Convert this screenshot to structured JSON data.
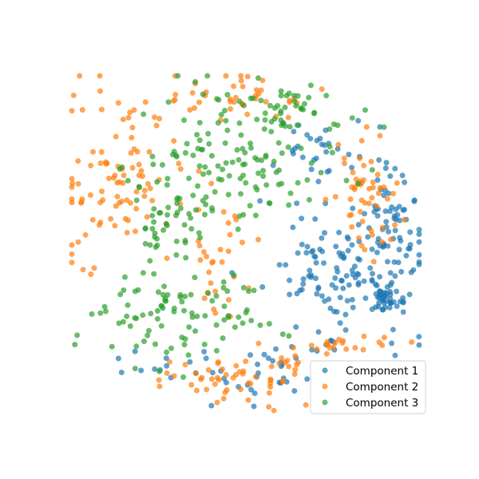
{
  "chart_data": {
    "type": "scatter",
    "title": "",
    "xlabel": "",
    "ylabel": "",
    "axes_visible": false,
    "grid": false,
    "legend_position": "lower-right",
    "xlim": [
      0,
      100
    ],
    "ylim": [
      0,
      100
    ],
    "marker_alpha": 0.7,
    "series": [
      {
        "name": "Component 1",
        "color": "#1f77b4"
      },
      {
        "name": "Component 2",
        "color": "#ff7f0e"
      },
      {
        "name": "Component 3",
        "color": "#2ca02c"
      }
    ],
    "points_per_series": [
      300,
      300,
      300
    ]
  },
  "legend": {
    "items": [
      {
        "label": "Component 1",
        "color": "#1f77b4"
      },
      {
        "label": "Component 2",
        "color": "#ff7f0e"
      },
      {
        "label": "Component 3",
        "color": "#2ca02c"
      }
    ]
  }
}
